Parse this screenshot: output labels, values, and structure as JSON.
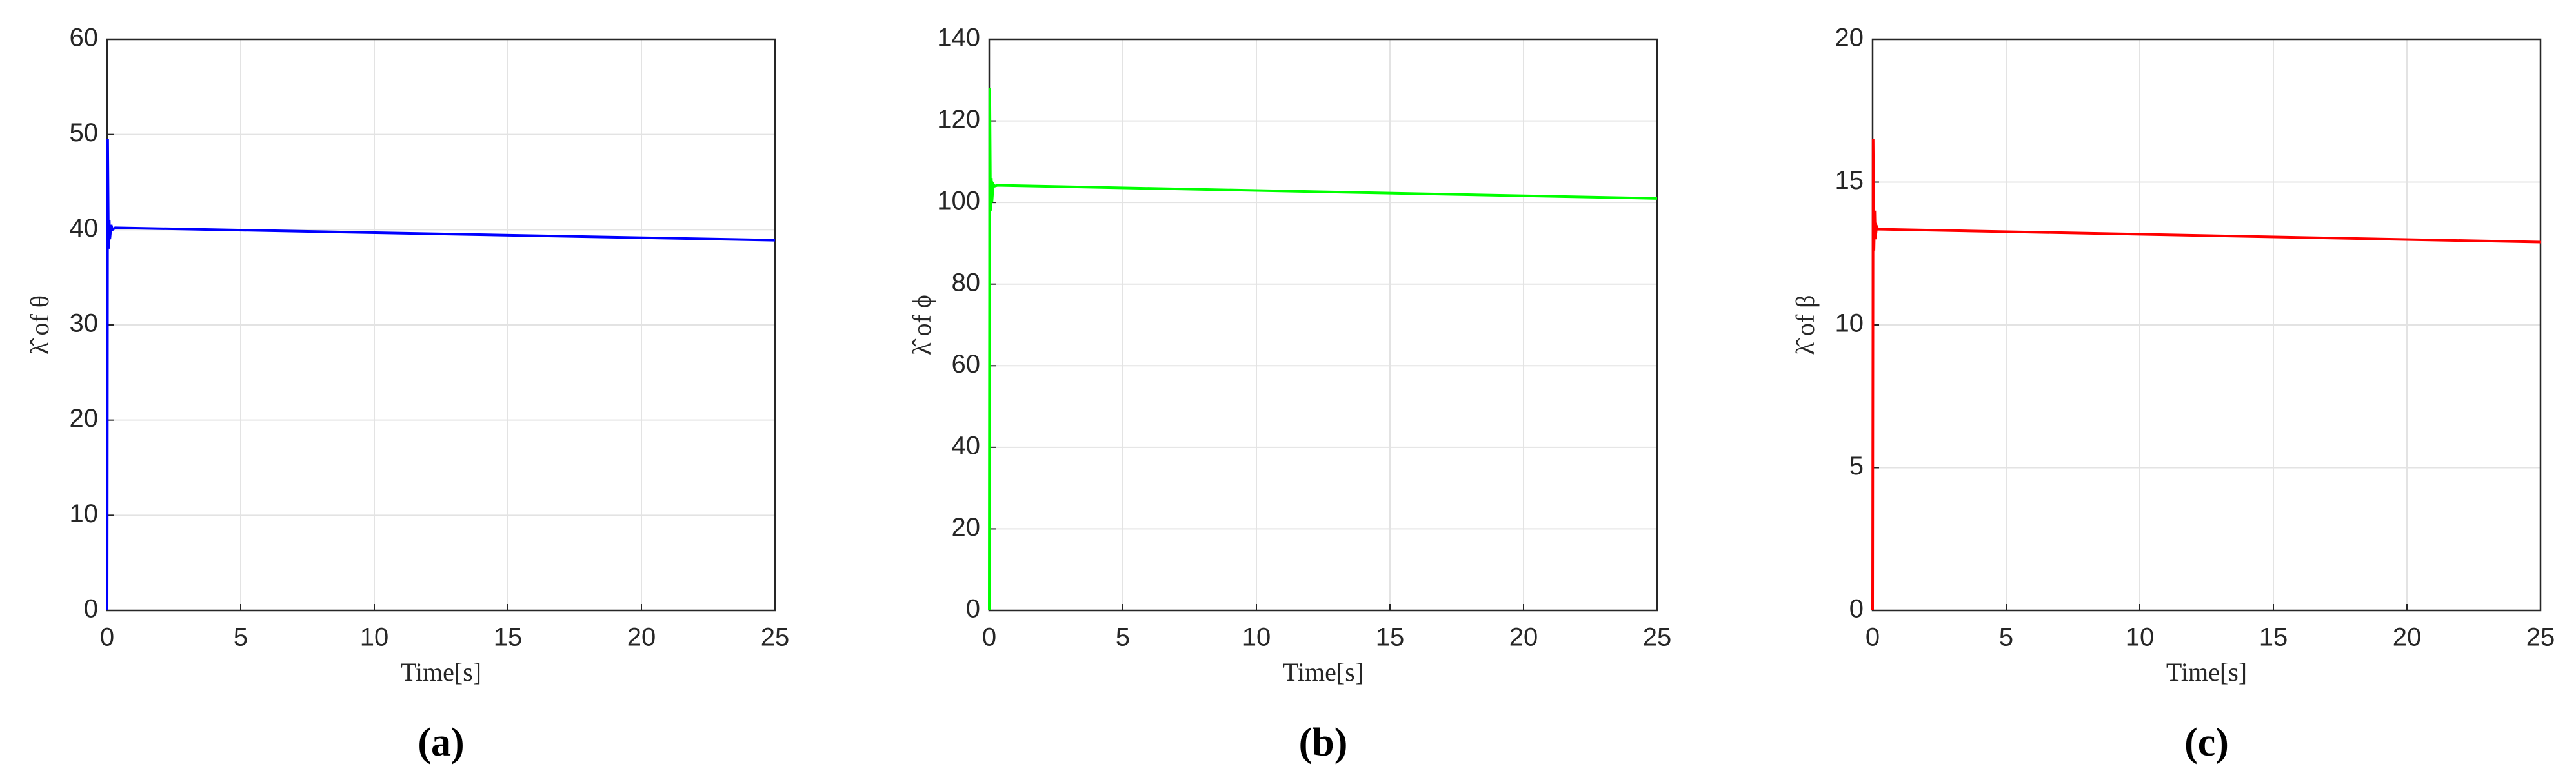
{
  "chart_data": [
    {
      "type": "line",
      "xlabel": "Time[s]",
      "ylabel": "λ̂ of θ",
      "caption": "(a)",
      "color": "#0000ff",
      "x": [
        0,
        0.02,
        0.05,
        0.08,
        0.1,
        0.15,
        0.2,
        0.3,
        25
      ],
      "values": [
        0,
        49.5,
        38,
        41,
        39,
        40.5,
        40,
        40.2,
        38.9
      ],
      "xlim": [
        0,
        25
      ],
      "xticks": [
        0,
        5,
        10,
        15,
        20,
        25
      ],
      "ylim": [
        0,
        60
      ],
      "yticks": [
        0,
        10,
        20,
        30,
        40,
        50,
        60
      ],
      "grid": true
    },
    {
      "type": "line",
      "xlabel": "Time[s]",
      "ylabel": "λ̂ of ϕ",
      "caption": "(b)",
      "color": "#00ff00",
      "x": [
        0,
        0.02,
        0.05,
        0.08,
        0.1,
        0.15,
        0.2,
        0.3,
        25
      ],
      "values": [
        0,
        128,
        98,
        106,
        100,
        104.5,
        104,
        104.2,
        101
      ],
      "xlim": [
        0,
        25
      ],
      "xticks": [
        0,
        5,
        10,
        15,
        20,
        25
      ],
      "ylim": [
        0,
        140
      ],
      "yticks": [
        0,
        20,
        40,
        60,
        80,
        100,
        120,
        140
      ],
      "grid": true
    },
    {
      "type": "line",
      "xlabel": "Time[s]",
      "ylabel": "λ̂ of β",
      "caption": "(c)",
      "color": "#ff0000",
      "x": [
        0,
        0.02,
        0.05,
        0.08,
        0.1,
        0.15,
        0.2,
        0.3,
        25
      ],
      "values": [
        0,
        16.5,
        12.6,
        14,
        13,
        13.45,
        13.35,
        13.35,
        12.9
      ],
      "xlim": [
        0,
        25
      ],
      "xticks": [
        0,
        5,
        10,
        15,
        20,
        25
      ],
      "ylim": [
        0,
        20
      ],
      "yticks": [
        0,
        5,
        10,
        15,
        20
      ],
      "grid": true
    }
  ]
}
